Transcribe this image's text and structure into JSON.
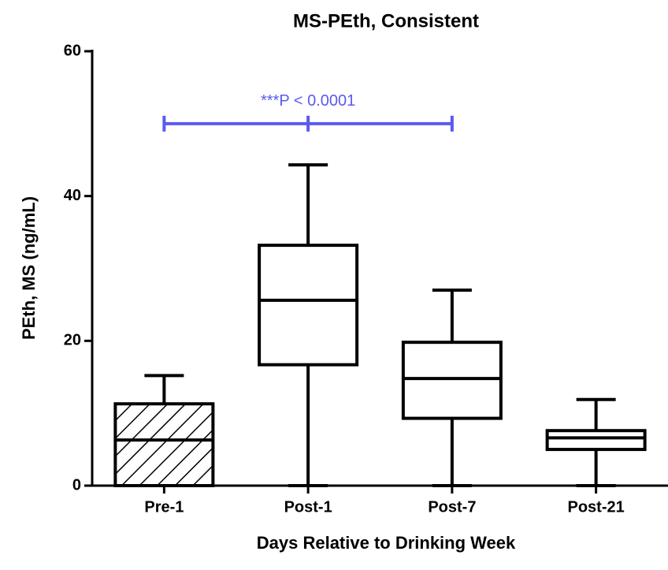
{
  "chart_data": {
    "type": "box",
    "title": "MS-PEth, Consistent",
    "xlabel": "Days Relative to Drinking Week",
    "ylabel": "PEth, MS (ng/mL)",
    "categories": [
      "Pre-1",
      "Post-1",
      "Post-7",
      "Post-21"
    ],
    "boxes": [
      {
        "min": 0,
        "q1": 0,
        "median": 6.3,
        "q3": 11.3,
        "max": 15.2
      },
      {
        "min": 0,
        "q1": 16.7,
        "median": 25.6,
        "q3": 33.2,
        "max": 44.3
      },
      {
        "min": 0,
        "q1": 9.3,
        "median": 14.8,
        "q3": 19.8,
        "max": 27.0
      },
      {
        "min": 0,
        "q1": 5.0,
        "median": 6.6,
        "q3": 7.6,
        "max": 11.9
      }
    ],
    "hatched": [
      true,
      false,
      false,
      false
    ],
    "color": "#000000",
    "ylim": [
      0,
      60
    ],
    "yticks": [
      0,
      20,
      40,
      60
    ],
    "annotation": {
      "text": "***P < 0.0001",
      "y": 50,
      "points": [
        "Pre-1",
        "Post-1",
        "Post-7"
      ],
      "color": "#5a5af0"
    }
  }
}
